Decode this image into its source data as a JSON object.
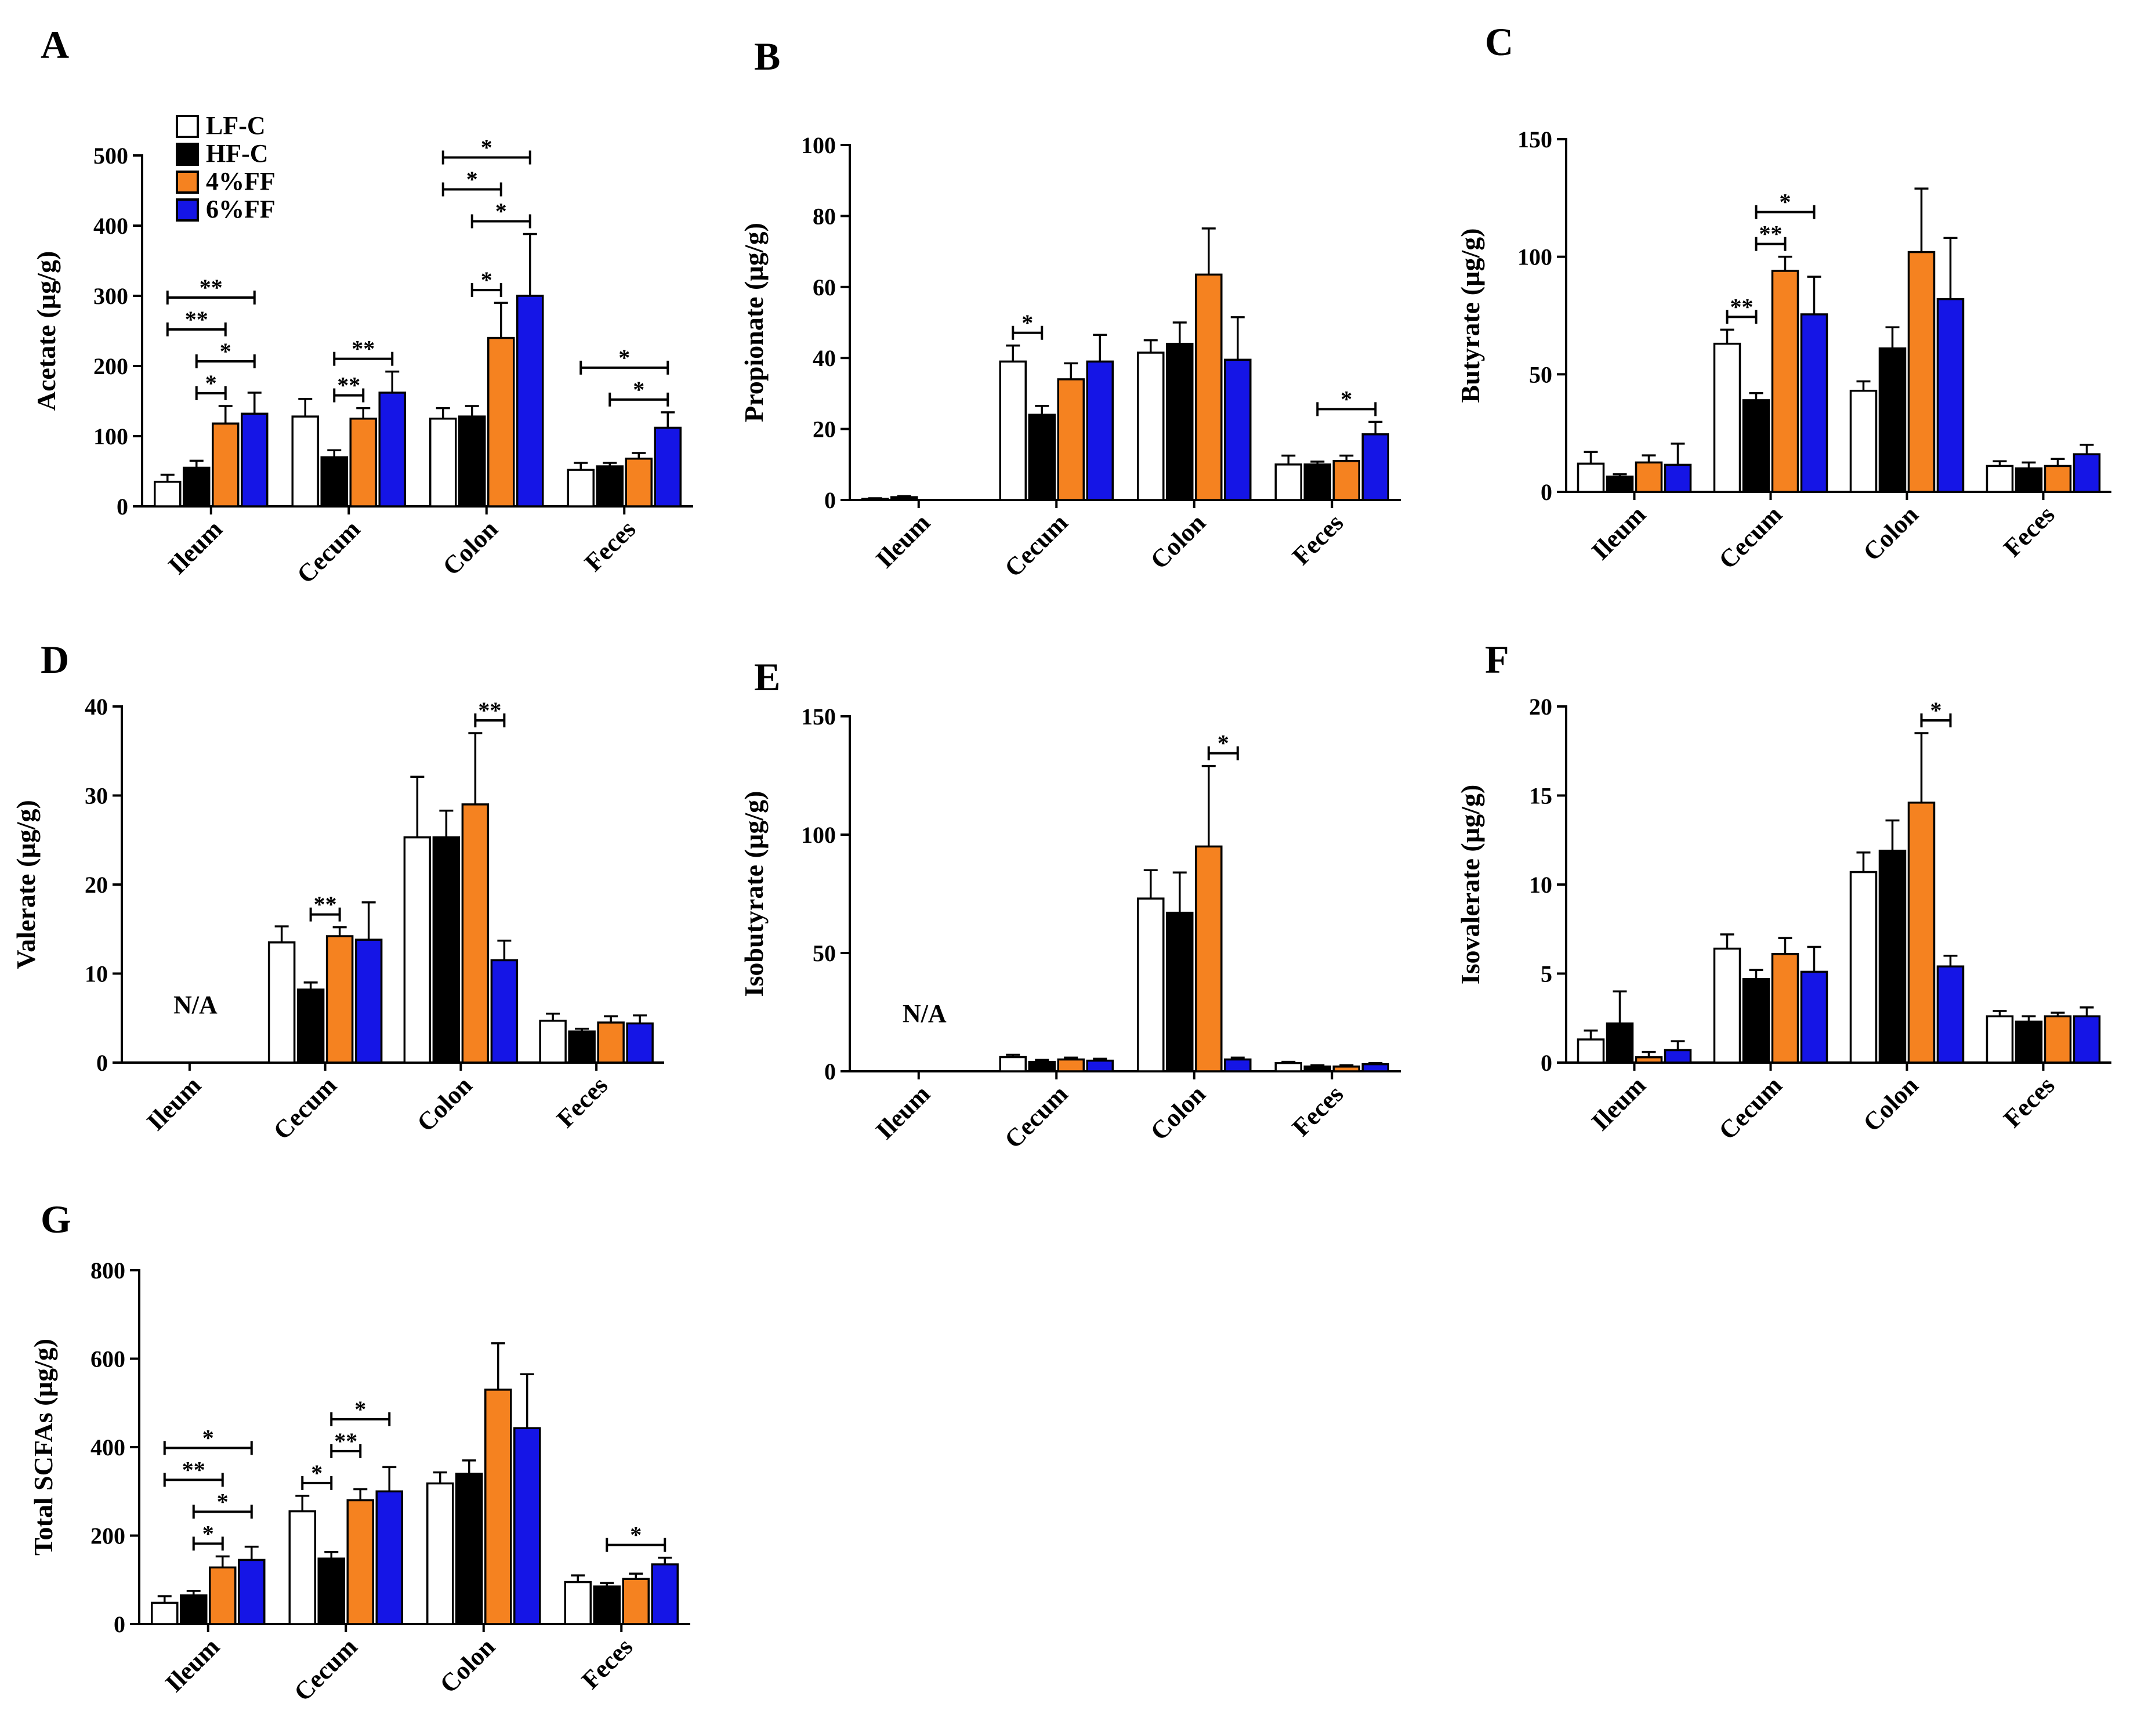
{
  "legend": [
    {
      "label": "LF-C",
      "color": "#ffffff"
    },
    {
      "label": "HF-C",
      "color": "#000000"
    },
    {
      "label": "4%FF",
      "color": "#f58220"
    },
    {
      "label": "6%FF",
      "color": "#1515e6"
    }
  ],
  "chart_data": [
    {
      "panel": "A",
      "type": "bar",
      "ylabel": "Acetate (µg/g)",
      "categories": [
        "Ileum",
        "Cecum",
        "Colon",
        "Feces"
      ],
      "ylim": [
        0,
        500
      ],
      "yticks": [
        0,
        100,
        200,
        300,
        400,
        500
      ],
      "series": [
        {
          "name": "LF-C",
          "values": [
            35,
            128,
            125,
            52
          ],
          "errors": [
            10,
            25,
            15,
            10
          ]
        },
        {
          "name": "HF-C",
          "values": [
            55,
            70,
            128,
            57
          ],
          "errors": [
            10,
            10,
            15,
            5
          ]
        },
        {
          "name": "4%FF",
          "values": [
            118,
            125,
            240,
            68
          ],
          "errors": [
            25,
            15,
            50,
            8
          ]
        },
        {
          "name": "6%FF",
          "values": [
            132,
            162,
            300,
            112
          ],
          "errors": [
            30,
            30,
            88,
            22
          ]
        }
      ],
      "significance": [
        {
          "cat": 0,
          "from": 0,
          "to": 3,
          "label": "**"
        },
        {
          "cat": 0,
          "from": 1,
          "to": 3,
          "label": "*"
        },
        {
          "cat": 0,
          "from": 0,
          "to": 2,
          "label": "**"
        },
        {
          "cat": 0,
          "from": 1,
          "to": 2,
          "label": "*"
        },
        {
          "cat": 1,
          "from": 1,
          "to": 3,
          "label": "**"
        },
        {
          "cat": 1,
          "from": 1,
          "to": 2,
          "label": "**"
        },
        {
          "cat": 2,
          "from": 0,
          "to": 3,
          "label": "*"
        },
        {
          "cat": 2,
          "from": 1,
          "to": 3,
          "label": "*"
        },
        {
          "cat": 2,
          "from": 0,
          "to": 2,
          "label": "*"
        },
        {
          "cat": 2,
          "from": 1,
          "to": 2,
          "label": "*"
        },
        {
          "cat": 3,
          "from": 0,
          "to": 3,
          "label": "*"
        },
        {
          "cat": 3,
          "from": 1,
          "to": 3,
          "label": "*"
        }
      ]
    },
    {
      "panel": "B",
      "type": "bar",
      "ylabel": "Propionate (µg/g)",
      "categories": [
        "Ileum",
        "Cecum",
        "Colon",
        "Feces"
      ],
      "ylim": [
        0,
        100
      ],
      "yticks": [
        0,
        20,
        40,
        60,
        80,
        100
      ],
      "series": [
        {
          "name": "LF-C",
          "values": [
            0.3,
            39,
            41.5,
            10
          ],
          "errors": [
            0.2,
            4.5,
            3.5,
            2.5
          ]
        },
        {
          "name": "HF-C",
          "values": [
            0.8,
            24,
            44,
            10
          ],
          "errors": [
            0.3,
            2.5,
            6,
            0.8
          ]
        },
        {
          "name": "4%FF",
          "values": [
            null,
            34,
            63.5,
            11
          ],
          "errors": [
            null,
            4.5,
            13,
            1.5
          ]
        },
        {
          "name": "6%FF",
          "values": [
            null,
            39,
            39.5,
            18.5
          ],
          "errors": [
            null,
            7.5,
            12,
            3.5
          ]
        }
      ],
      "significance": [
        {
          "cat": 1,
          "from": 0,
          "to": 1,
          "label": "*"
        },
        {
          "cat": 3,
          "from": 1,
          "to": 3,
          "label": "*"
        }
      ]
    },
    {
      "panel": "C",
      "type": "bar",
      "ylabel": "Butyrate (µg/g)",
      "categories": [
        "Ileum",
        "Cecum",
        "Colon",
        "Feces"
      ],
      "ylim": [
        0,
        150
      ],
      "yticks": [
        0,
        50,
        100,
        150
      ],
      "series": [
        {
          "name": "LF-C",
          "values": [
            12,
            63,
            43,
            11
          ],
          "errors": [
            5,
            6,
            4,
            2
          ]
        },
        {
          "name": "HF-C",
          "values": [
            6.5,
            39,
            61,
            10
          ],
          "errors": [
            1,
            3,
            9,
            2.5
          ]
        },
        {
          "name": "4%FF",
          "values": [
            12.5,
            94,
            102,
            11
          ],
          "errors": [
            3,
            6,
            27,
            3
          ]
        },
        {
          "name": "6%FF",
          "values": [
            11.5,
            75.5,
            82,
            16
          ],
          "errors": [
            9,
            16,
            26,
            4
          ]
        }
      ],
      "significance": [
        {
          "cat": 1,
          "from": 0,
          "to": 1,
          "label": "**"
        },
        {
          "cat": 1,
          "from": 1,
          "to": 2,
          "label": "**"
        },
        {
          "cat": 1,
          "from": 1,
          "to": 3,
          "label": "*"
        }
      ]
    },
    {
      "panel": "D",
      "type": "bar",
      "ylabel": "Valerate (µg/g)",
      "categories": [
        "Ileum",
        "Cecum",
        "Colon",
        "Feces"
      ],
      "ylim": [
        0,
        40
      ],
      "yticks": [
        0,
        10,
        20,
        30,
        40
      ],
      "na_label": "N/A",
      "series": [
        {
          "name": "LF-C",
          "values": [
            null,
            13.5,
            25.3,
            4.7
          ],
          "errors": [
            null,
            1.8,
            6.8,
            0.8
          ]
        },
        {
          "name": "HF-C",
          "values": [
            null,
            8.2,
            25.3,
            3.5
          ],
          "errors": [
            null,
            0.8,
            3,
            0.3
          ]
        },
        {
          "name": "4%FF",
          "values": [
            null,
            14.2,
            29,
            4.5
          ],
          "errors": [
            null,
            1,
            8,
            0.7
          ]
        },
        {
          "name": "6%FF",
          "values": [
            null,
            13.8,
            11.5,
            4.4
          ],
          "errors": [
            null,
            4.2,
            2.2,
            0.9
          ]
        }
      ],
      "significance": [
        {
          "cat": 1,
          "from": 1,
          "to": 2,
          "label": "**"
        },
        {
          "cat": 2,
          "from": 2,
          "to": 3,
          "label": "**"
        }
      ]
    },
    {
      "panel": "E",
      "type": "bar",
      "ylabel": "Isobutyrate (µg/g)",
      "categories": [
        "Ileum",
        "Cecum",
        "Colon",
        "Feces"
      ],
      "ylim": [
        0,
        150
      ],
      "yticks": [
        0,
        50,
        100,
        150
      ],
      "na_label": "N/A",
      "series": [
        {
          "name": "LF-C",
          "values": [
            null,
            6,
            73,
            3.5
          ],
          "errors": [
            null,
            1,
            12,
            0.5
          ]
        },
        {
          "name": "HF-C",
          "values": [
            null,
            4,
            67,
            2
          ],
          "errors": [
            null,
            0.8,
            17,
            0.5
          ]
        },
        {
          "name": "4%FF",
          "values": [
            null,
            5,
            95,
            2
          ],
          "errors": [
            null,
            0.8,
            34,
            0.5
          ]
        },
        {
          "name": "6%FF",
          "values": [
            null,
            4.5,
            5,
            3
          ],
          "errors": [
            null,
            0.8,
            0.8,
            0.5
          ]
        }
      ],
      "significance": [
        {
          "cat": 2,
          "from": 2,
          "to": 3,
          "label": "*"
        }
      ]
    },
    {
      "panel": "F",
      "type": "bar",
      "ylabel": "Isovalerate (µg/g)",
      "categories": [
        "Ileum",
        "Cecum",
        "Colon",
        "Feces"
      ],
      "ylim": [
        0,
        20
      ],
      "yticks": [
        0,
        5,
        10,
        15,
        20
      ],
      "series": [
        {
          "name": "LF-C",
          "values": [
            1.3,
            6.4,
            10.7,
            2.6
          ],
          "errors": [
            0.5,
            0.8,
            1.1,
            0.3
          ]
        },
        {
          "name": "HF-C",
          "values": [
            2.2,
            4.7,
            11.9,
            2.3
          ],
          "errors": [
            1.8,
            0.5,
            1.7,
            0.3
          ]
        },
        {
          "name": "4%FF",
          "values": [
            0.3,
            6.1,
            14.6,
            2.6
          ],
          "errors": [
            0.3,
            0.9,
            3.9,
            0.2
          ]
        },
        {
          "name": "6%FF",
          "values": [
            0.7,
            5.1,
            5.4,
            2.6
          ],
          "errors": [
            0.5,
            1.4,
            0.6,
            0.5
          ]
        }
      ],
      "significance": [
        {
          "cat": 2,
          "from": 2,
          "to": 3,
          "label": "*"
        }
      ]
    },
    {
      "panel": "G",
      "type": "bar",
      "ylabel": "Total SCFAs (µg/g)",
      "categories": [
        "Ileum",
        "Cecum",
        "Colon",
        "Feces"
      ],
      "ylim": [
        0,
        800
      ],
      "yticks": [
        0,
        200,
        400,
        600,
        800
      ],
      "series": [
        {
          "name": "LF-C",
          "values": [
            48,
            255,
            318,
            95
          ],
          "errors": [
            15,
            35,
            25,
            15
          ]
        },
        {
          "name": "HF-C",
          "values": [
            65,
            148,
            340,
            85
          ],
          "errors": [
            10,
            15,
            30,
            8
          ]
        },
        {
          "name": "4%FF",
          "values": [
            128,
            280,
            530,
            102
          ],
          "errors": [
            25,
            25,
            105,
            12
          ]
        },
        {
          "name": "6%FF",
          "values": [
            145,
            300,
            443,
            135
          ],
          "errors": [
            30,
            55,
            122,
            15
          ]
        }
      ],
      "significance": [
        {
          "cat": 0,
          "from": 0,
          "to": 3,
          "label": "*"
        },
        {
          "cat": 0,
          "from": 1,
          "to": 3,
          "label": "*"
        },
        {
          "cat": 0,
          "from": 0,
          "to": 2,
          "label": "**"
        },
        {
          "cat": 0,
          "from": 1,
          "to": 2,
          "label": "*"
        },
        {
          "cat": 1,
          "from": 0,
          "to": 1,
          "label": "*"
        },
        {
          "cat": 1,
          "from": 1,
          "to": 3,
          "label": "*"
        },
        {
          "cat": 1,
          "from": 1,
          "to": 2,
          "label": "**"
        },
        {
          "cat": 3,
          "from": 1,
          "to": 3,
          "label": "*"
        }
      ]
    }
  ]
}
